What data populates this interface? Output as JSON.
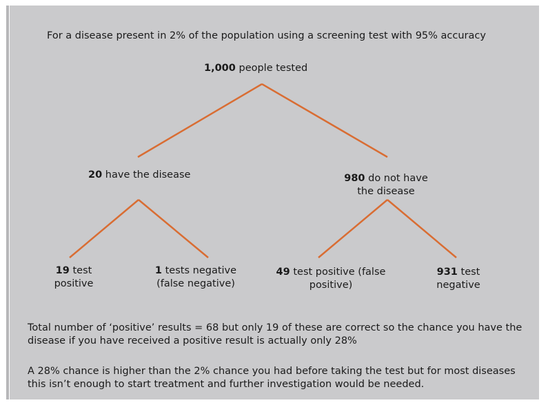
{
  "intro": "For a disease present in 2% of the population using a screening test with 95% accuracy",
  "root": {
    "number": "1,000",
    "label": " people tested"
  },
  "disease": {
    "number": "20",
    "label": " have the disease"
  },
  "no_disease": {
    "number": "980",
    "label": " do not have",
    "line2": "the disease"
  },
  "leaf_tp": {
    "number": "19",
    "label": " test",
    "line2": "positive"
  },
  "leaf_fn": {
    "number": "1",
    "label": " tests negative",
    "line2": "(false negative)"
  },
  "leaf_fp": {
    "number": "49",
    "label": " test positive (false",
    "line2": "positive)"
  },
  "leaf_tn": {
    "number": "931",
    "label": " test",
    "line2": "negative"
  },
  "summary1": {
    "line1": "Total number of  ‘positive’ results = 68 but only 19 of these are correct so the chance you have the",
    "line2": "disease if you have received a positive result is actually only 28%"
  },
  "summary2": {
    "line1": "A 28% chance is higher than the 2% chance you had before taking the test but for most diseases",
    "line2": "this isn’t enough to start treatment and further investigation would be needed."
  },
  "colors": {
    "branch": "#d96d33",
    "panel": "#cacacc"
  }
}
